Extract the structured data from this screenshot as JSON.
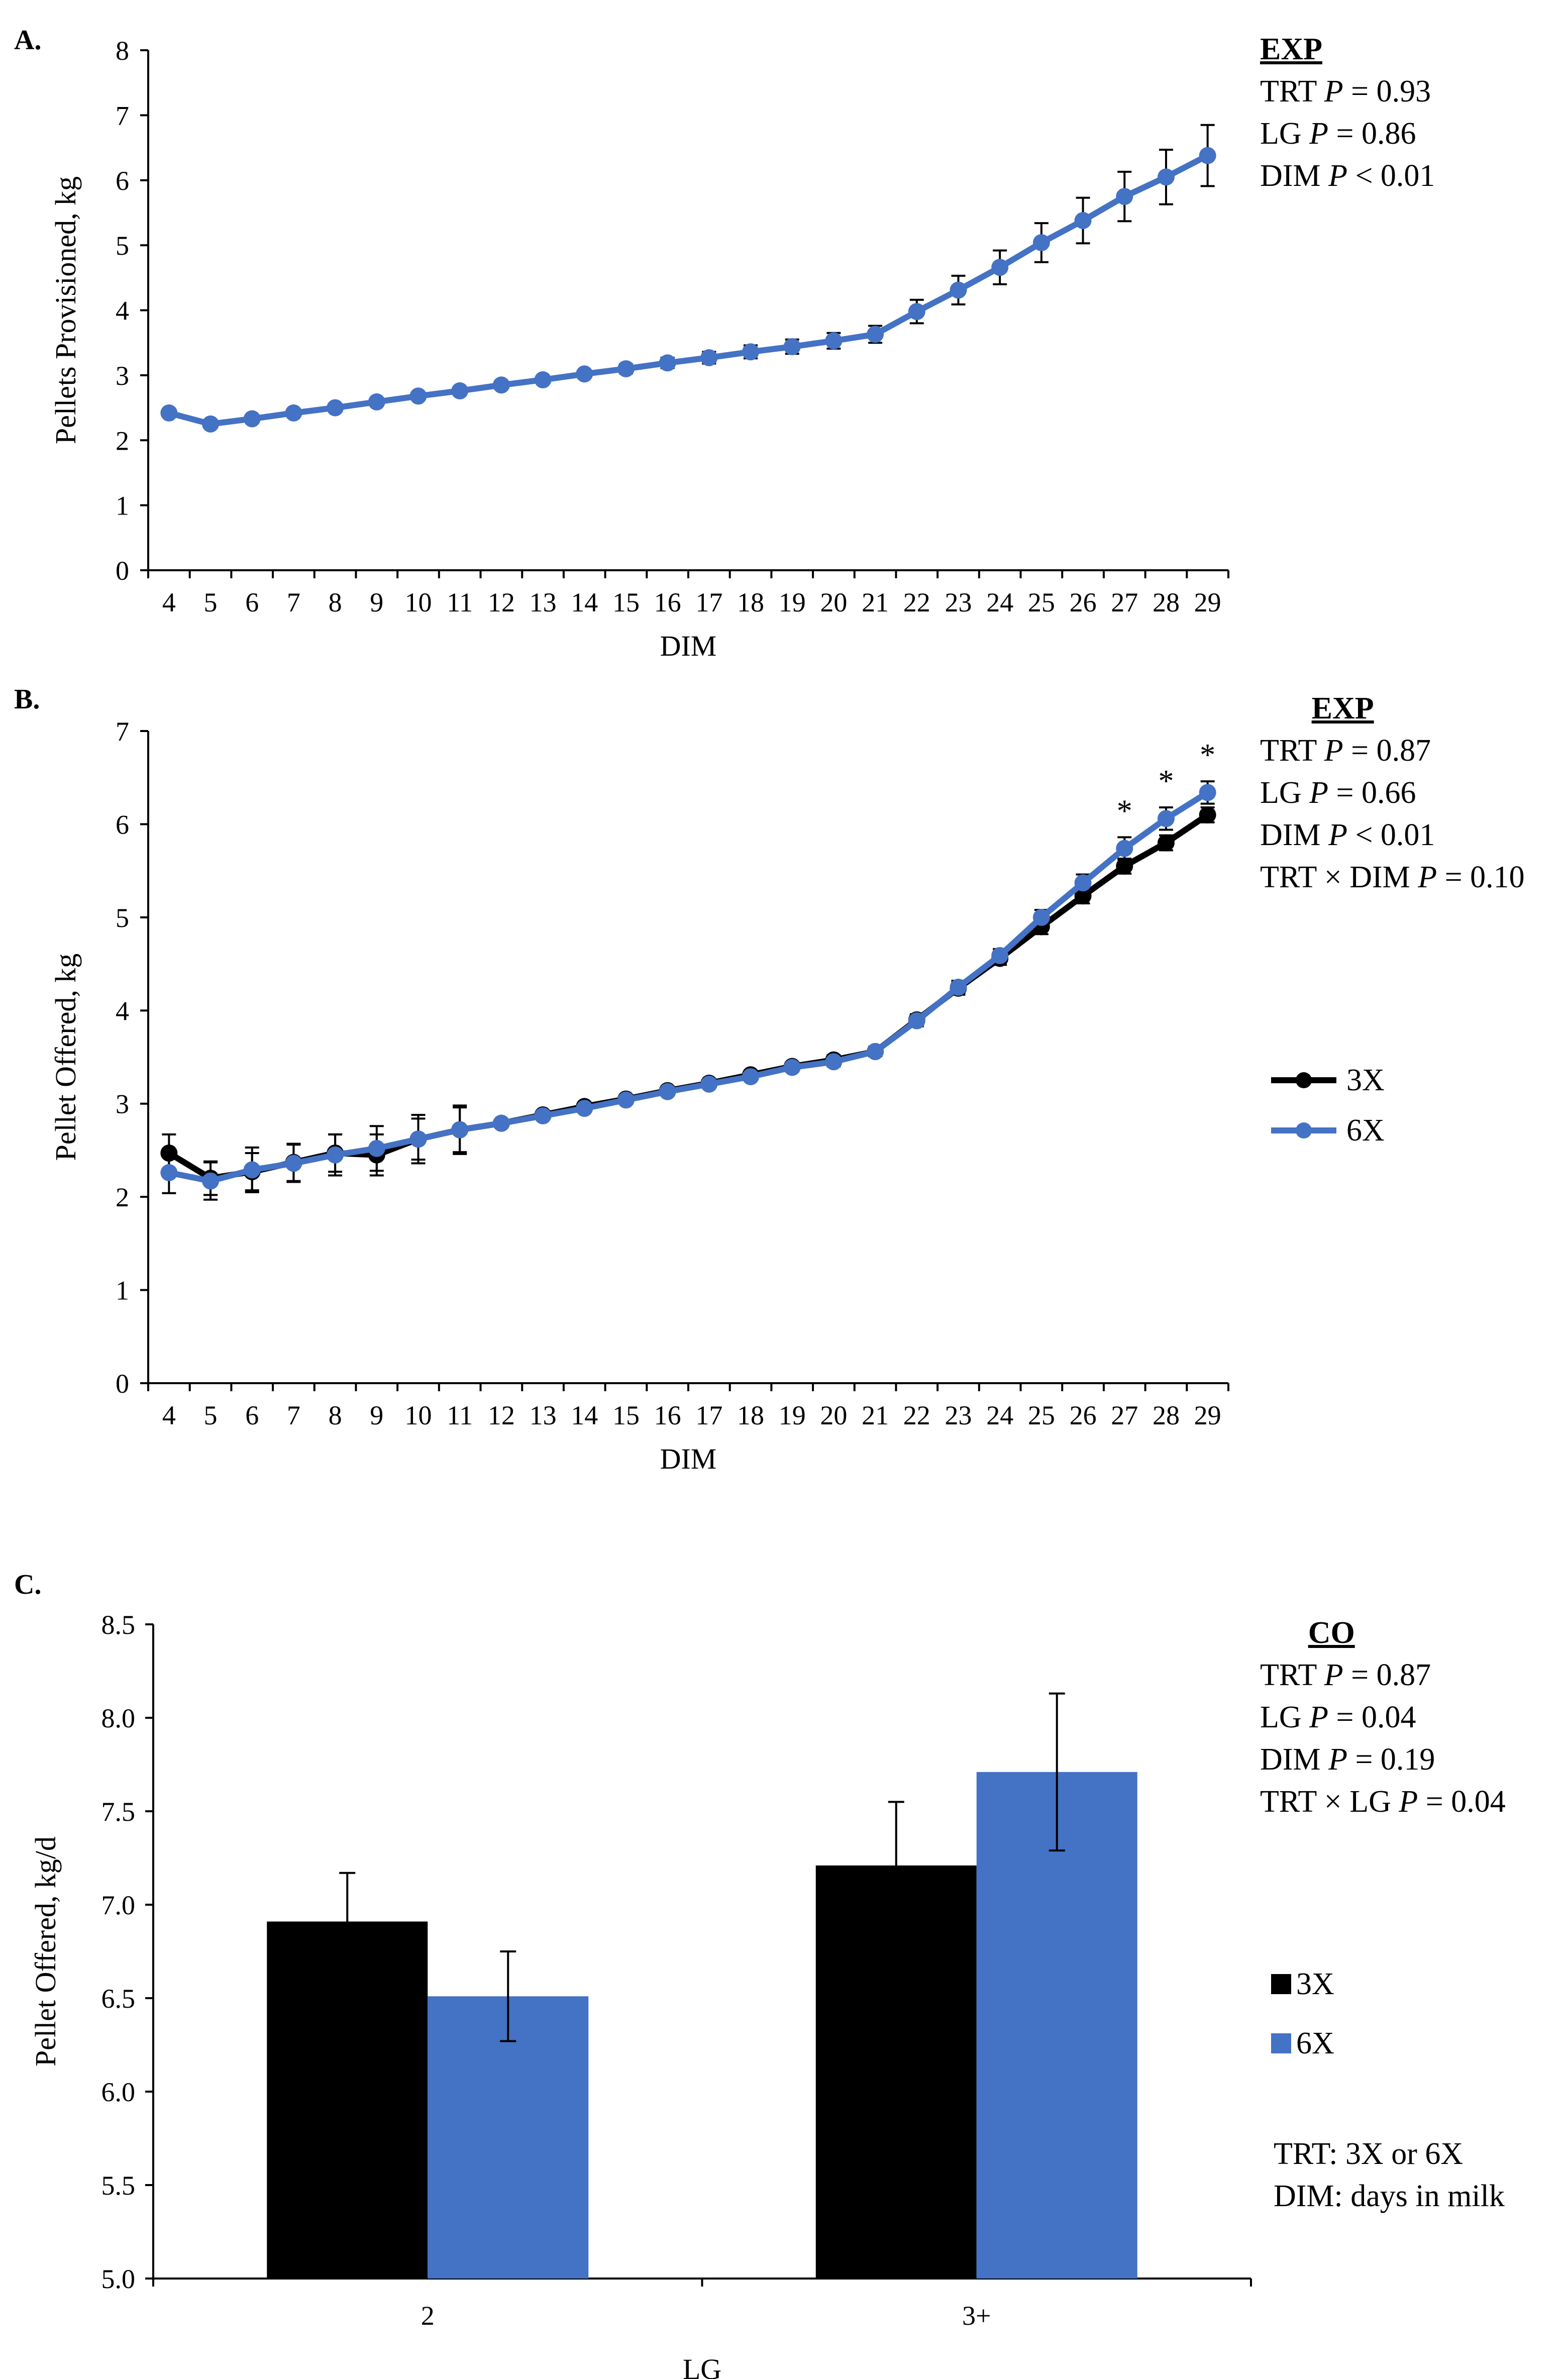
{
  "chart_data": [
    {
      "type": "line",
      "panel_label": "A.",
      "ylabel": "Pellets Provisioned, kg",
      "xlabel": "DIM",
      "ylim": [
        0,
        8
      ],
      "yticks": [
        "0",
        "1",
        "2",
        "3",
        "4",
        "5",
        "6",
        "7",
        "8"
      ],
      "categories": [
        "4",
        "5",
        "6",
        "7",
        "8",
        "9",
        "10",
        "11",
        "12",
        "13",
        "14",
        "15",
        "16",
        "17",
        "18",
        "19",
        "20",
        "21",
        "22",
        "23",
        "24",
        "25",
        "26",
        "27",
        "28",
        "29"
      ],
      "series": [
        {
          "color": "#4472C4",
          "values": [
            2.42,
            2.25,
            2.33,
            2.42,
            2.5,
            2.59,
            2.68,
            2.76,
            2.85,
            2.93,
            3.02,
            3.1,
            3.19,
            3.27,
            3.36,
            3.44,
            3.53,
            3.63,
            3.98,
            4.31,
            4.66,
            5.04,
            5.38,
            5.75,
            6.05,
            6.38
          ],
          "errors": [
            0.05,
            0.05,
            0.05,
            0.05,
            0.05,
            0.05,
            0.05,
            0.05,
            0.05,
            0.05,
            0.06,
            0.07,
            0.08,
            0.09,
            0.1,
            0.11,
            0.12,
            0.13,
            0.18,
            0.22,
            0.26,
            0.3,
            0.35,
            0.38,
            0.42,
            0.47
          ]
        }
      ],
      "stats": {
        "heading": "EXP",
        "lines": [
          {
            "label": "TRT",
            "p": "P",
            "value": " = 0.93"
          },
          {
            "label": "LG",
            "p": "P",
            "value": " = 0.86"
          },
          {
            "label": "DIM",
            "p": "P",
            "value": " < 0.01"
          }
        ]
      }
    },
    {
      "type": "line",
      "panel_label": "B.",
      "ylabel": "Pellet Offered, kg",
      "xlabel": "DIM",
      "ylim": [
        0,
        7
      ],
      "yticks": [
        "0",
        "1",
        "2",
        "3",
        "4",
        "5",
        "6",
        "7"
      ],
      "categories": [
        "4",
        "5",
        "6",
        "7",
        "8",
        "9",
        "10",
        "11",
        "12",
        "13",
        "14",
        "15",
        "16",
        "17",
        "18",
        "19",
        "20",
        "21",
        "22",
        "23",
        "24",
        "25",
        "26",
        "27",
        "28",
        "29"
      ],
      "series": [
        {
          "name": "3X",
          "color": "#000000",
          "values": [
            2.47,
            2.2,
            2.27,
            2.37,
            2.47,
            2.45,
            2.62,
            2.72,
            2.79,
            2.88,
            2.97,
            3.05,
            3.14,
            3.22,
            3.31,
            3.4,
            3.47,
            3.56,
            3.9,
            4.24,
            4.56,
            4.9,
            5.23,
            5.55,
            5.8,
            6.1
          ],
          "errors": [
            0.2,
            0.18,
            0.2,
            0.2,
            0.2,
            0.22,
            0.22,
            0.24,
            0.04,
            0.04,
            0.04,
            0.04,
            0.04,
            0.04,
            0.04,
            0.04,
            0.05,
            0.05,
            0.06,
            0.07,
            0.07,
            0.08,
            0.08,
            0.08,
            0.08,
            0.08
          ]
        },
        {
          "name": "6X",
          "color": "#4472C4",
          "values": [
            2.26,
            2.17,
            2.29,
            2.36,
            2.45,
            2.52,
            2.62,
            2.72,
            2.79,
            2.87,
            2.95,
            3.04,
            3.13,
            3.21,
            3.29,
            3.39,
            3.45,
            3.56,
            3.89,
            4.25,
            4.59,
            5.0,
            5.37,
            5.74,
            6.06,
            6.34
          ],
          "errors": [
            0.22,
            0.2,
            0.24,
            0.2,
            0.22,
            0.24,
            0.26,
            0.26,
            0.04,
            0.04,
            0.04,
            0.04,
            0.04,
            0.04,
            0.04,
            0.04,
            0.05,
            0.05,
            0.06,
            0.07,
            0.07,
            0.08,
            0.09,
            0.12,
            0.12,
            0.12
          ]
        }
      ],
      "significance": [
        {
          "category": "27",
          "mark": "*"
        },
        {
          "category": "28",
          "mark": "*"
        },
        {
          "category": "29",
          "mark": "*"
        }
      ],
      "legend_placement": "right",
      "stats": {
        "heading": "EXP",
        "lines": [
          {
            "label": "TRT",
            "p": "P",
            "value": " = 0.87"
          },
          {
            "label": "LG",
            "p": "P",
            "value": " = 0.66"
          },
          {
            "label": "DIM",
            "p": "P",
            "value": " < 0.01"
          },
          {
            "label": "TRT × DIM",
            "p": "P",
            "value": " = 0.10"
          }
        ]
      }
    },
    {
      "type": "bar",
      "panel_label": "C.",
      "ylabel": "Pellet Offered, kg/d",
      "xlabel": "LG",
      "ylim": [
        5.0,
        8.5
      ],
      "yticks": [
        "5.0",
        "5.5",
        "6.0",
        "6.5",
        "7.0",
        "7.5",
        "8.0",
        "8.5"
      ],
      "categories": [
        "2",
        "3+"
      ],
      "series": [
        {
          "name": "3X",
          "color": "#000000",
          "values": [
            6.91,
            7.21
          ],
          "errors": [
            0.26,
            0.34
          ]
        },
        {
          "name": "6X",
          "color": "#4472C4",
          "values": [
            6.51,
            7.71
          ],
          "errors": [
            0.24,
            0.42
          ]
        }
      ],
      "legend_placement": "right",
      "stats": {
        "heading": "CO",
        "lines": [
          {
            "label": "TRT",
            "p": "P",
            "value": " = 0.87"
          },
          {
            "label": "LG",
            "p": "P",
            "value": " = 0.04"
          },
          {
            "label": "DIM",
            "p": "P",
            "value": " = 0.19"
          },
          {
            "label": "TRT × LG",
            "p": "P",
            "value": " = 0.04"
          }
        ]
      },
      "notes": [
        "TRT: 3X or 6X",
        "DIM: days in milk"
      ]
    }
  ]
}
